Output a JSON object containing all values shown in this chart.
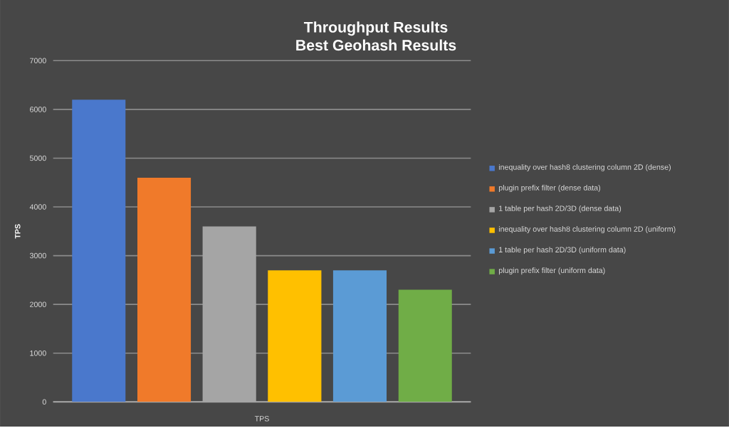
{
  "chart_data": {
    "type": "bar",
    "title": "Throughput Results",
    "subtitle": "Best Geohash Results",
    "xlabel": "TPS",
    "ylabel": "TPS",
    "categories": [
      null,
      null,
      null,
      null,
      null,
      null
    ],
    "series": [
      {
        "name": "inequality over hash8 clustering column 2D (dense)",
        "color": "#4a78cc",
        "values": [
          6200,
          null,
          null,
          null,
          null,
          null
        ]
      },
      {
        "name": "plugin prefix filter (dense data)",
        "color": "#f07a2a",
        "values": [
          null,
          4600,
          null,
          null,
          null,
          null
        ]
      },
      {
        "name": "1 table per hash 2D/3D (dense data)",
        "color": "#a5a5a5",
        "values": [
          null,
          null,
          3600,
          null,
          null,
          null
        ]
      },
      {
        "name": "inequality over hash8 clustering column 2D (uniform)",
        "color": "#ffc000",
        "values": [
          null,
          null,
          null,
          2700,
          null,
          null
        ]
      },
      {
        "name": "1 table per hash 2D/3D (uniform data)",
        "color": "#5b9bd5",
        "values": [
          null,
          null,
          null,
          null,
          2700,
          null
        ]
      },
      {
        "name": "plugin prefix filter (uniform data)",
        "color": "#70ad47",
        "values": [
          null,
          null,
          null,
          null,
          null,
          2300
        ]
      }
    ],
    "ylim": [
      0,
      7000
    ],
    "yticks": [
      0,
      1000,
      2000,
      3000,
      4000,
      5000,
      6000,
      7000
    ],
    "grid": "y",
    "legend": "right"
  }
}
